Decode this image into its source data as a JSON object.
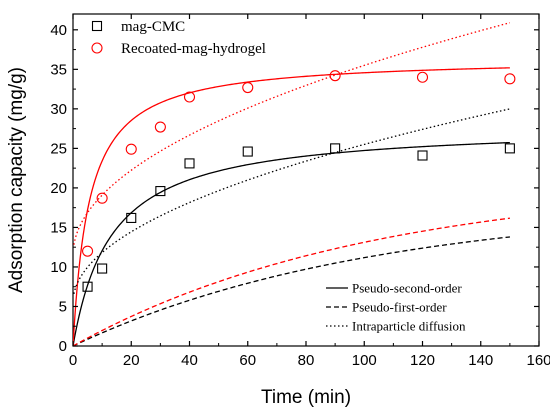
{
  "chart_data": {
    "type": "scatter",
    "xlabel": "Time (min)",
    "ylabel": "Adsorption capacity (mg/g)",
    "xlim": [
      0,
      160
    ],
    "ylim": [
      0,
      42
    ],
    "xticks": [
      0,
      20,
      40,
      60,
      80,
      100,
      120,
      140,
      160
    ],
    "yticks": [
      0,
      5,
      10,
      15,
      20,
      25,
      30,
      35,
      40
    ],
    "grid": false,
    "legend_position": "top-left",
    "series": [
      {
        "name": "mag-CMC",
        "marker": "square",
        "color": "#000000",
        "points": [
          [
            5,
            7.5
          ],
          [
            10,
            9.8
          ],
          [
            20,
            16.2
          ],
          [
            30,
            19.6
          ],
          [
            40,
            23.1
          ],
          [
            60,
            24.6
          ],
          [
            90,
            25.0
          ],
          [
            120,
            24.1
          ],
          [
            150,
            25.0
          ]
        ]
      },
      {
        "name": "Recoated-mag-hydrogel",
        "marker": "circle",
        "color": "#ff0000",
        "points": [
          [
            5,
            12.0
          ],
          [
            10,
            18.7
          ],
          [
            20,
            24.9
          ],
          [
            30,
            27.7
          ],
          [
            40,
            31.5
          ],
          [
            60,
            32.7
          ],
          [
            90,
            34.2
          ],
          [
            120,
            34.0
          ],
          [
            150,
            33.8
          ]
        ]
      }
    ],
    "fits": [
      {
        "series": "mag-CMC",
        "model": "Pseudo-second-order",
        "style": "solid",
        "color": "#000000",
        "qe": 28.0,
        "k": 0.0027
      },
      {
        "series": "Recoated-mag-hydrogel",
        "model": "Pseudo-second-order",
        "style": "solid",
        "color": "#ff0000",
        "qe": 36.5,
        "k": 0.0049
      },
      {
        "series": "mag-CMC",
        "model": "Pseudo-first-order",
        "style": "dashed",
        "color": "#000000",
        "qe": 18.0,
        "k1": 0.0097
      },
      {
        "series": "Recoated-mag-hydrogel",
        "model": "Pseudo-first-order",
        "style": "dashed",
        "color": "#ff0000",
        "qe": 21.0,
        "k1": 0.0098
      },
      {
        "series": "mag-CMC",
        "model": "Intraparticle diffusion",
        "style": "dotted",
        "color": "#000000",
        "kid": 2.0,
        "c": 5.5
      },
      {
        "series": "Recoated-mag-hydrogel",
        "model": "Intraparticle diffusion",
        "style": "dotted",
        "color": "#ff0000",
        "kid": 2.4,
        "c": 11.5
      }
    ],
    "line_legend": [
      {
        "label": "Pseudo-second-order",
        "style": "solid"
      },
      {
        "label": "Pseudo-first-order",
        "style": "dashed"
      },
      {
        "label": "Intraparticle diffusion",
        "style": "dotted"
      }
    ]
  }
}
